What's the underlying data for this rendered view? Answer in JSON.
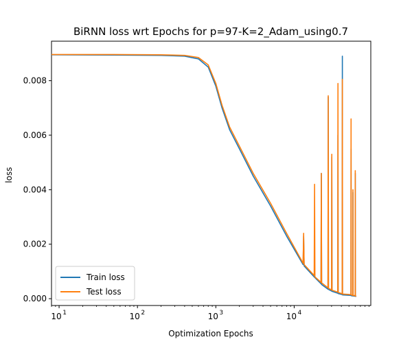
{
  "chart_data": {
    "type": "line",
    "title": "BiRNN loss wrt Epochs for p=97-K=2_Adam_using0.7",
    "xlabel": "Optimization Epochs",
    "ylabel": "loss",
    "xscale": "log",
    "xlim": [
      8,
      95000
    ],
    "ylim": [
      -0.00025,
      0.00945
    ],
    "x_ticks": [
      {
        "base": "10",
        "exp": "1",
        "value": 10
      },
      {
        "base": "10",
        "exp": "2",
        "value": 100
      },
      {
        "base": "10",
        "exp": "3",
        "value": 1000
      },
      {
        "base": "10",
        "exp": "4",
        "value": 10000
      }
    ],
    "y_ticks": [
      {
        "label": "0.000",
        "value": 0.0
      },
      {
        "label": "0.002",
        "value": 0.002
      },
      {
        "label": "0.004",
        "value": 0.004
      },
      {
        "label": "0.006",
        "value": 0.006
      },
      {
        "label": "0.008",
        "value": 0.008
      }
    ],
    "legend_position": "lower-left",
    "series": [
      {
        "name": "Train loss",
        "color": "#1f77b4",
        "points": [
          [
            8,
            0.00895
          ],
          [
            50,
            0.00894
          ],
          [
            200,
            0.00893
          ],
          [
            400,
            0.0089
          ],
          [
            600,
            0.0088
          ],
          [
            800,
            0.0085
          ],
          [
            1000,
            0.0078
          ],
          [
            1200,
            0.007
          ],
          [
            1500,
            0.0062
          ],
          [
            2000,
            0.0055
          ],
          [
            3000,
            0.0045
          ],
          [
            5000,
            0.0034
          ],
          [
            8000,
            0.0023
          ],
          [
            13000,
            0.00125
          ],
          [
            13200,
            0.0023
          ],
          [
            13400,
            0.0012
          ],
          [
            18000,
            0.0008
          ],
          [
            22000,
            0.00055
          ],
          [
            22200,
            0.0046
          ],
          [
            22400,
            0.00052
          ],
          [
            27000,
            0.00035
          ],
          [
            27200,
            0.0074
          ],
          [
            27400,
            0.00034
          ],
          [
            30000,
            0.00028
          ],
          [
            30200,
            0.0052
          ],
          [
            30400,
            0.00027
          ],
          [
            36000,
            0.0002
          ],
          [
            36200,
            0.006
          ],
          [
            36400,
            0.00019
          ],
          [
            41000,
            0.00015
          ],
          [
            41200,
            0.0089
          ],
          [
            41400,
            0.00014
          ],
          [
            53000,
            0.00012
          ],
          [
            53200,
            0.0055
          ],
          [
            53400,
            0.00011
          ],
          [
            56000,
            0.0001
          ],
          [
            56200,
            0.0039
          ],
          [
            56400,
            0.0001
          ],
          [
            60000,
            9e-05
          ],
          [
            60200,
            0.0046
          ],
          [
            60400,
            9e-05
          ],
          [
            62000,
            8e-05
          ]
        ]
      },
      {
        "name": "Test loss",
        "color": "#ff7f0e",
        "points": [
          [
            8,
            0.00896
          ],
          [
            50,
            0.00896
          ],
          [
            200,
            0.00895
          ],
          [
            400,
            0.00893
          ],
          [
            600,
            0.00885
          ],
          [
            800,
            0.00858
          ],
          [
            1000,
            0.0079
          ],
          [
            1200,
            0.0071
          ],
          [
            1500,
            0.0063
          ],
          [
            2000,
            0.0056
          ],
          [
            3000,
            0.0046
          ],
          [
            5000,
            0.0035
          ],
          [
            8000,
            0.0024
          ],
          [
            13000,
            0.0013
          ],
          [
            13200,
            0.0024
          ],
          [
            13400,
            0.00125
          ],
          [
            18000,
            0.00085
          ],
          [
            18200,
            0.0042
          ],
          [
            18400,
            0.0008
          ],
          [
            22000,
            0.0006
          ],
          [
            22200,
            0.0046
          ],
          [
            22400,
            0.00058
          ],
          [
            27000,
            0.0004
          ],
          [
            27200,
            0.00745
          ],
          [
            27400,
            0.00038
          ],
          [
            30000,
            0.00032
          ],
          [
            30200,
            0.0053
          ],
          [
            30400,
            0.00031
          ],
          [
            36000,
            0.00024
          ],
          [
            36200,
            0.0079
          ],
          [
            36400,
            0.00023
          ],
          [
            41000,
            0.00018
          ],
          [
            41200,
            0.00805
          ],
          [
            41400,
            0.00017
          ],
          [
            53000,
            0.00015
          ],
          [
            53200,
            0.0066
          ],
          [
            53400,
            0.00014
          ],
          [
            56000,
            0.00012
          ],
          [
            56200,
            0.004
          ],
          [
            56400,
            0.00012
          ],
          [
            60000,
            0.00011
          ],
          [
            60200,
            0.0047
          ],
          [
            60400,
            0.0001
          ],
          [
            62000,
            9e-05
          ]
        ]
      }
    ]
  }
}
